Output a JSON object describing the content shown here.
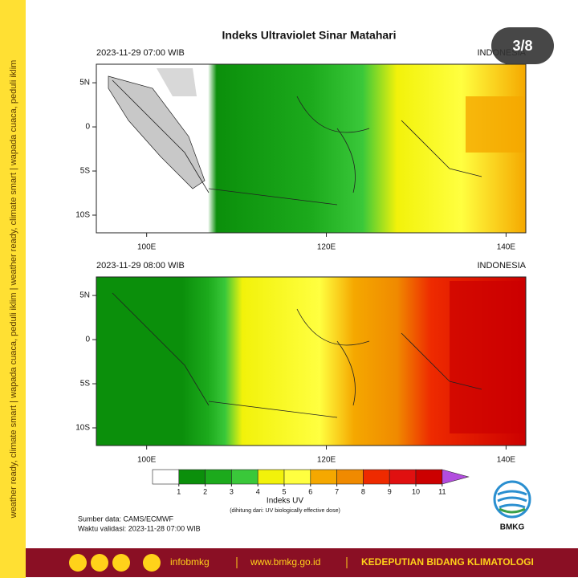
{
  "post": {
    "counter": "3/8",
    "sidebar": "weather ready, climate smart | wapada cuaca, peduli iklim | weather ready, climate smart | wapada cuaca, peduli iklim"
  },
  "title": "Indeks Ultraviolet Sinar Matahari",
  "maps": [
    {
      "datetime": "2023-11-29  07:00 WIB",
      "region": "INDONESIA"
    },
    {
      "datetime": "2023-11-29  08:00 WIB",
      "region": "INDONESIA"
    }
  ],
  "axes": {
    "xlim": [
      94.4,
      142.2
    ],
    "ylim": [
      -12,
      7.1
    ],
    "xticks": [
      {
        "value": 100,
        "label": "100E"
      },
      {
        "value": 120,
        "label": "120E"
      },
      {
        "value": 140,
        "label": "140E"
      }
    ],
    "yticks": [
      {
        "value": 5,
        "label": "5N"
      },
      0,
      {
        "value": -5,
        "label": "5S"
      },
      {
        "value": -10,
        "label": "10S"
      }
    ]
  },
  "colorbar": {
    "ticks": [
      1,
      2,
      3,
      4,
      5,
      6,
      7,
      8,
      9,
      10,
      11
    ],
    "colors": [
      "#ffffff",
      "#0b8f0b",
      "#1caa1c",
      "#3ac83a",
      "#f2f20a",
      "#ffff40",
      "#f5a800",
      "#f08a00",
      "#ee2a00",
      "#e01010",
      "#cc0000",
      "#b24dde"
    ],
    "label": "Indeks UV",
    "note": "(dihitung dari: UV biologically effective dose)"
  },
  "source": "Sumber data: CAMS/ECMWF",
  "validity": "Waktu validasi: 2023-11-28 07:00 WIB",
  "logo": "BMKG",
  "footer": {
    "handle": "infobmkg",
    "website": "www.bmkg.go.id",
    "unit": "KEDEPUTIAN BIDANG KLIMATOLOGI"
  }
}
